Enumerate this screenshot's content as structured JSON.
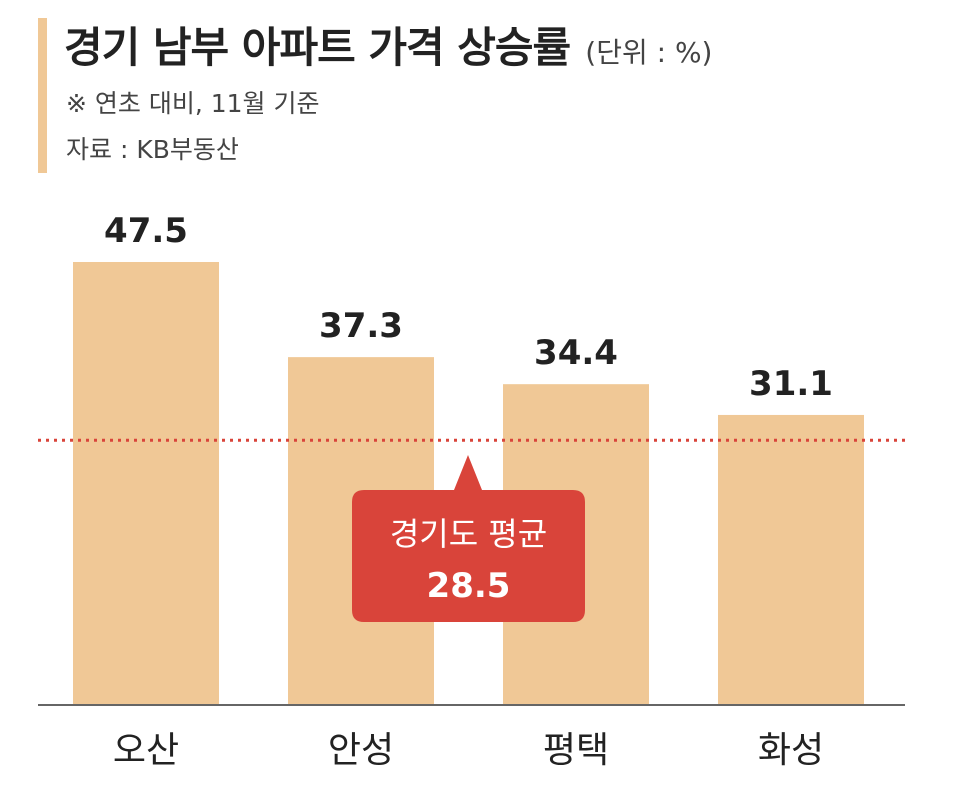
{
  "header": {
    "title": "경기 남부 아파트 가격 상승률",
    "unit": "(단위 : %)",
    "note": "※ 연초 대비, 11월 기준",
    "source": "자료 : KB부동산"
  },
  "chart_data": {
    "type": "bar",
    "categories": [
      "오산",
      "안성",
      "평택",
      "화성"
    ],
    "values": [
      47.5,
      37.3,
      34.4,
      31.1
    ],
    "value_labels": [
      "47.5",
      "37.3",
      "34.4",
      "31.1"
    ],
    "ylim": [
      0,
      60
    ],
    "grid": false,
    "reference_line": {
      "label": "경기도 평균",
      "value": 28.5,
      "value_label": "28.5"
    }
  },
  "colors": {
    "bar": "#f0c896",
    "reference_line": "#d9443a",
    "callout": "#d9443a",
    "callout_text": "#ffffff",
    "axis": "#666666",
    "accent": "#f0c896"
  }
}
